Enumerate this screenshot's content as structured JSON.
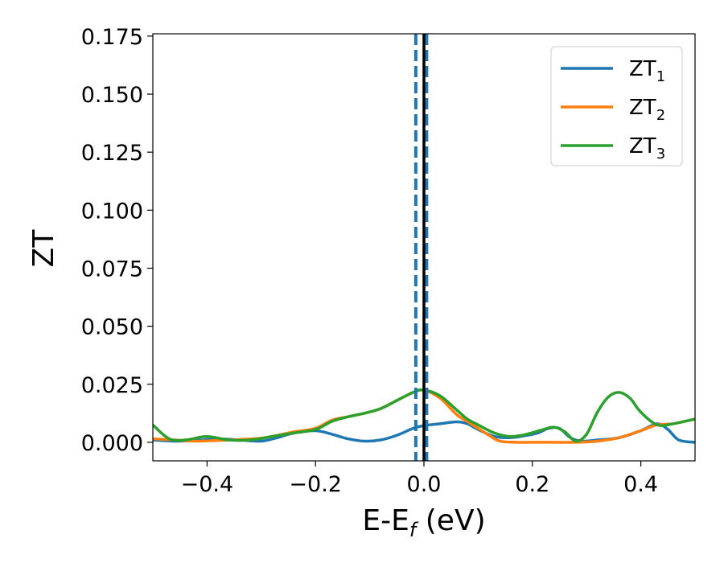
{
  "chart_data": {
    "type": "line",
    "title": "",
    "xlabel": {
      "main": "E-E",
      "sub": "f",
      "suffix": " (eV)"
    },
    "ylabel": "ZT",
    "xlim": [
      -0.5,
      0.5
    ],
    "ylim": [
      -0.008,
      0.176
    ],
    "xticks": [
      -0.4,
      -0.2,
      0.0,
      0.2,
      0.4
    ],
    "xtick_labels": [
      "−0.4",
      "−0.2",
      "0.0",
      "0.2",
      "0.4"
    ],
    "yticks": [
      0.0,
      0.025,
      0.05,
      0.075,
      0.1,
      0.125,
      0.15,
      0.175
    ],
    "ytick_labels": [
      "0.000",
      "0.025",
      "0.050",
      "0.075",
      "0.100",
      "0.125",
      "0.150",
      "0.175"
    ],
    "grid": false,
    "legend_position": "top-right",
    "vlines": [
      {
        "x": -0.015,
        "style": "dashed",
        "color": "#1f77b4"
      },
      {
        "x": 0.005,
        "style": "dashed",
        "color": "#1f77b4"
      },
      {
        "x": 0.0,
        "style": "solid",
        "color": "#000000"
      }
    ],
    "series": [
      {
        "name": {
          "main": "ZT",
          "sub": "1"
        },
        "color": "#1f77b4",
        "x": [
          -0.5,
          -0.46,
          -0.42,
          -0.38,
          -0.34,
          -0.3,
          -0.27,
          -0.24,
          -0.2,
          -0.17,
          -0.14,
          -0.11,
          -0.08,
          -0.05,
          -0.02,
          0.0,
          0.03,
          0.06,
          0.08,
          0.1,
          0.13,
          0.16,
          0.19,
          0.21,
          0.23,
          0.25,
          0.27,
          0.29,
          0.32,
          0.36,
          0.4,
          0.43,
          0.45,
          0.47,
          0.5
        ],
        "y": [
          0.001,
          0.0005,
          0.0008,
          0.0015,
          0.001,
          0.0005,
          0.002,
          0.004,
          0.005,
          0.0035,
          0.0015,
          0.0005,
          0.001,
          0.003,
          0.006,
          0.0072,
          0.008,
          0.0088,
          0.008,
          0.0055,
          0.0025,
          0.002,
          0.003,
          0.004,
          0.006,
          0.006,
          0.002,
          0.0005,
          0.001,
          0.002,
          0.005,
          0.008,
          0.0055,
          0.001,
          0.0
        ]
      },
      {
        "name": {
          "main": "ZT",
          "sub": "2"
        },
        "color": "#ff7f0e",
        "x": [
          -0.5,
          -0.46,
          -0.42,
          -0.38,
          -0.34,
          -0.3,
          -0.27,
          -0.24,
          -0.2,
          -0.17,
          -0.14,
          -0.11,
          -0.08,
          -0.05,
          -0.02,
          0.0,
          0.03,
          0.06,
          0.08,
          0.1,
          0.12,
          0.14,
          0.17,
          0.2,
          0.24,
          0.28,
          0.32,
          0.36,
          0.4,
          0.43,
          0.46,
          0.5
        ],
        "y": [
          0.0015,
          0.001,
          0.0005,
          0.0008,
          0.0012,
          0.0018,
          0.003,
          0.0045,
          0.006,
          0.0095,
          0.011,
          0.0125,
          0.0145,
          0.018,
          0.0215,
          0.0225,
          0.019,
          0.012,
          0.009,
          0.006,
          0.003,
          0.0005,
          0.0,
          0.0,
          0.0,
          0.0,
          0.0005,
          0.002,
          0.005,
          0.0075,
          0.008,
          0.01
        ]
      },
      {
        "name": {
          "main": "ZT",
          "sub": "3"
        },
        "color": "#2ca02c",
        "x": [
          -0.5,
          -0.47,
          -0.44,
          -0.4,
          -0.36,
          -0.32,
          -0.28,
          -0.24,
          -0.2,
          -0.17,
          -0.14,
          -0.11,
          -0.08,
          -0.05,
          -0.02,
          0.0,
          0.03,
          0.06,
          0.08,
          0.1,
          0.13,
          0.16,
          0.19,
          0.22,
          0.24,
          0.26,
          0.28,
          0.3,
          0.32,
          0.34,
          0.36,
          0.38,
          0.4,
          0.43,
          0.46,
          0.5
        ],
        "y": [
          0.0075,
          0.0015,
          0.001,
          0.0025,
          0.001,
          0.001,
          0.0025,
          0.004,
          0.0055,
          0.009,
          0.011,
          0.0125,
          0.0145,
          0.018,
          0.0215,
          0.0225,
          0.02,
          0.014,
          0.01,
          0.0075,
          0.004,
          0.0025,
          0.0035,
          0.0055,
          0.0065,
          0.0045,
          0.0005,
          0.0035,
          0.013,
          0.0195,
          0.0215,
          0.019,
          0.013,
          0.0075,
          0.008,
          0.01
        ]
      }
    ]
  }
}
